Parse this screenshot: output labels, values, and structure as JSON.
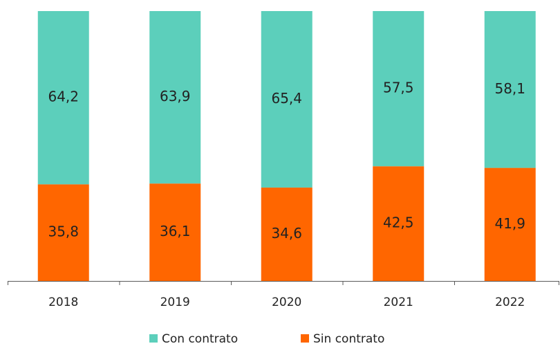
{
  "chart_data": {
    "type": "stacked_bar",
    "categories": [
      "2018",
      "2019",
      "2020",
      "2021",
      "2022"
    ],
    "series": [
      {
        "name": "Sin contrato",
        "color": "#ff6600",
        "values": [
          35.8,
          36.1,
          34.6,
          42.5,
          41.9
        ],
        "value_labels": [
          "35,8",
          "36,1",
          "34,6",
          "42,5",
          "41,9"
        ]
      },
      {
        "name": "Con contrato",
        "color": "#5ccfbb",
        "values": [
          64.2,
          63.9,
          65.4,
          57.5,
          58.1
        ],
        "value_labels": [
          "64,2",
          "63,9",
          "65,4",
          "57,5",
          "58,1"
        ]
      }
    ],
    "ylim": [
      0,
      100
    ],
    "legend": "bottom"
  }
}
